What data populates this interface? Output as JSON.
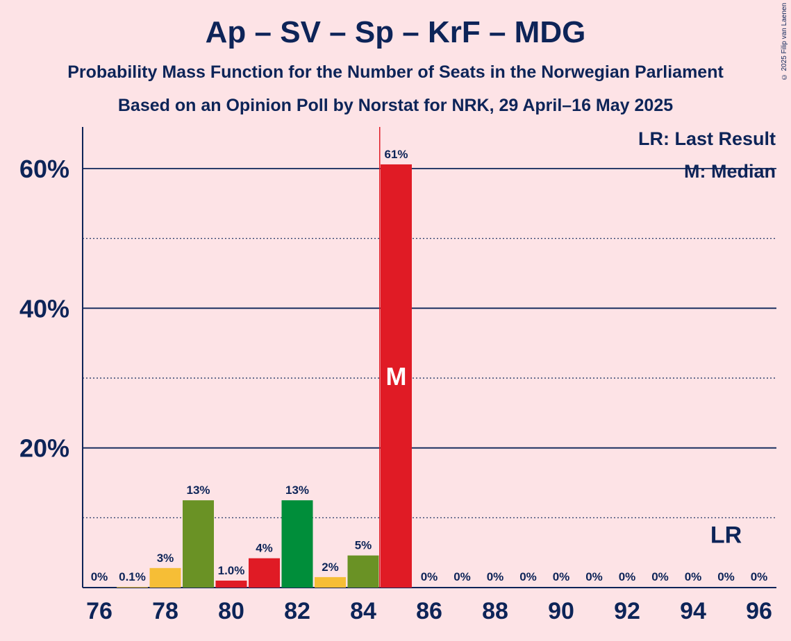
{
  "chart_data": {
    "type": "bar",
    "title": "Ap – SV – Sp – KrF – MDG",
    "subtitle1": "Probability Mass Function for the Number of Seats in the Norwegian Parliament",
    "subtitle2": "Based on an Opinion Poll by Norstat for NRK, 29 April–16 May 2025",
    "copyright": "© 2025 Filip van Laenen",
    "legend": {
      "lr": "LR: Last Result",
      "median": "M: Median"
    },
    "xlabel": "",
    "ylabel": "",
    "ylim": [
      0,
      66
    ],
    "yticks": [
      {
        "value": 20,
        "label": "20%"
      },
      {
        "value": 40,
        "label": "40%"
      },
      {
        "value": 60,
        "label": "60%"
      }
    ],
    "minor_gridlines": [
      10,
      30,
      50
    ],
    "xticks": [
      76,
      78,
      80,
      82,
      84,
      86,
      88,
      90,
      92,
      94,
      96
    ],
    "categories": [
      76,
      77,
      78,
      79,
      80,
      81,
      82,
      83,
      84,
      85,
      86,
      87,
      88,
      89,
      90,
      91,
      92,
      93,
      94,
      95,
      96
    ],
    "values": [
      0,
      0.1,
      2.8,
      12.5,
      1.0,
      4.2,
      12.5,
      1.5,
      4.6,
      60.6,
      0,
      0,
      0,
      0,
      0,
      0,
      0,
      0,
      0,
      0,
      0
    ],
    "labels": [
      "0%",
      "0.1%",
      "3%",
      "13%",
      "1.0%",
      "4%",
      "13%",
      "2%",
      "5%",
      "61%",
      "0%",
      "0%",
      "0%",
      "0%",
      "0%",
      "0%",
      "0%",
      "0%",
      "0%",
      "0%",
      "0%"
    ],
    "colors": [
      "#f6be36",
      "#f6be36",
      "#f6be36",
      "#6a9225",
      "#e01b25",
      "#e01b25",
      "#008e3a",
      "#f6be36",
      "#6a9225",
      "#e01b25",
      "#e01b25",
      "#e01b25",
      "#e01b25",
      "#e01b25",
      "#e01b25",
      "#e01b25",
      "#e01b25",
      "#e01b25",
      "#e01b25",
      "#e01b25",
      "#e01b25"
    ],
    "median": {
      "seat": 85,
      "label": "M"
    },
    "last_result": {
      "seat": 95,
      "label": "LR"
    },
    "majority_line": {
      "seat": 84.5,
      "color": "#e01b25"
    }
  },
  "colors": {
    "axis": "#0d2458",
    "background": "#fde3e6"
  }
}
